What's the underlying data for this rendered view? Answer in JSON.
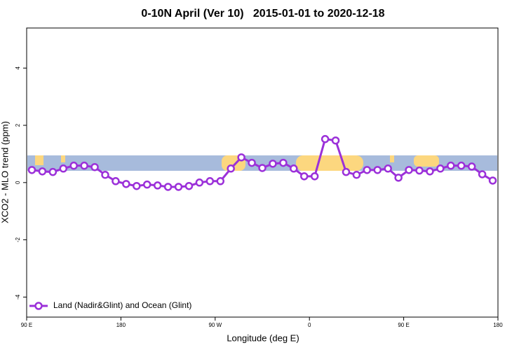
{
  "chart_data": {
    "type": "line",
    "title": "0-10N April (Ver 10)   2015-01-01 to 2020-12-18",
    "xlabel": "Longitude (deg E)",
    "ylabel": "XCO2 - MLO trend (ppm)",
    "xlim": [
      90,
      540
    ],
    "ylim": [
      -4.7,
      5.4
    ],
    "xticks": [
      {
        "value": 90,
        "label": "90 E"
      },
      {
        "value": 180,
        "label": "180"
      },
      {
        "value": 270,
        "label": "90 W"
      },
      {
        "value": 360,
        "label": "0"
      },
      {
        "value": 450,
        "label": "90 E"
      },
      {
        "value": 540,
        "label": "180"
      }
    ],
    "yticks": [
      -4,
      -2,
      0,
      2,
      4
    ],
    "legend": "bottom-left",
    "x": [
      95,
      105,
      115,
      125,
      135,
      145,
      155,
      165,
      175,
      185,
      195,
      205,
      215,
      225,
      235,
      245,
      255,
      265,
      275,
      285,
      295,
      305,
      315,
      325,
      335,
      345,
      355,
      365,
      375,
      385,
      395,
      405,
      415,
      425,
      435,
      445,
      455,
      465,
      475,
      485,
      495,
      505,
      515,
      525,
      535
    ],
    "series": [
      {
        "name": "Land (Nadir&Glint) and Ocean (Glint)",
        "color": "#9b30d9",
        "values": [
          0.44,
          0.39,
          0.37,
          0.49,
          0.59,
          0.59,
          0.54,
          0.27,
          0.05,
          -0.05,
          -0.12,
          -0.07,
          -0.1,
          -0.15,
          -0.15,
          -0.12,
          0.0,
          0.05,
          0.05,
          0.49,
          0.88,
          0.69,
          0.51,
          0.66,
          0.69,
          0.49,
          0.22,
          0.22,
          1.52,
          1.47,
          0.37,
          0.27,
          0.44,
          0.44,
          0.49,
          0.17,
          0.44,
          0.42,
          0.39,
          0.49,
          0.59,
          0.59,
          0.56,
          0.29,
          0.07
        ]
      }
    ]
  }
}
